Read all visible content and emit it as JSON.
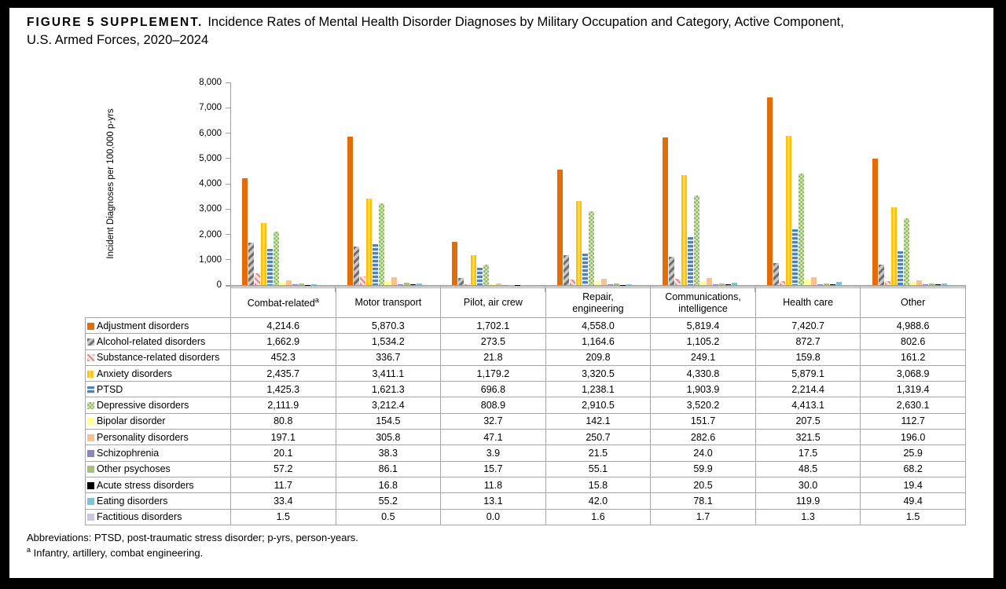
{
  "figure": {
    "label": "FIGURE 5 SUPPLEMENT.",
    "title_part1": "Incidence Rates of Mental Health Disorder Diagnoses by Military Occupation and Category, Active Component,",
    "title_part2": "U.S. Armed Forces, 2020–2024"
  },
  "footnotes": {
    "abbreviations": "Abbreviations: PTSD, post-traumatic stress disorder; p-yrs, person-years.",
    "a_marker": "a",
    "a_text": " Infantry, artillery, combat engineering."
  },
  "chart_data": {
    "type": "bar",
    "title": "Incidence Rates of Mental Health Disorder Diagnoses by Military Occupation and Category, Active Component, U.S. Armed Forces, 2020–2024",
    "xlabel": "",
    "ylabel": "Incident Diagnoses per 100,000 p-yrs",
    "ylim": [
      0,
      8000
    ],
    "ytick_interval": 1000,
    "grid": false,
    "legend_position": "table-first-column",
    "axis_color": "#a6a6a6",
    "categories": [
      {
        "lines": [
          "Combat-related"
        ],
        "sup": "a"
      },
      {
        "lines": [
          "Motor transport"
        ]
      },
      {
        "lines": [
          "Pilot, air crew"
        ]
      },
      {
        "lines": [
          "Repair,",
          "engineering"
        ]
      },
      {
        "lines": [
          "Communications,",
          "intelligence"
        ]
      },
      {
        "lines": [
          "Health care"
        ]
      },
      {
        "lines": [
          "Other"
        ]
      }
    ],
    "series": [
      {
        "name": "Adjustment disorders",
        "pattern": "solid",
        "color": "#e36c09",
        "values": [
          4214.6,
          5870.3,
          1702.1,
          4558.0,
          5819.4,
          7420.7,
          4988.6
        ]
      },
      {
        "name": "Alcohol-related disorders",
        "pattern": "diagonal-down",
        "color": "#6f6f6f",
        "color2": "#c8c8c8",
        "values": [
          1662.9,
          1534.2,
          273.5,
          1164.6,
          1105.2,
          872.7,
          802.6
        ]
      },
      {
        "name": "Substance-related disorders",
        "pattern": "diagonal-up",
        "color": "#e08a8a",
        "color2": "#f6e0e0",
        "values": [
          452.3,
          336.7,
          21.8,
          209.8,
          249.1,
          159.8,
          161.2
        ]
      },
      {
        "name": "Anxiety disorders",
        "pattern": "vertical",
        "color": "#ffc000",
        "color2": "#ffde6b",
        "values": [
          2435.7,
          3411.1,
          1179.2,
          3320.5,
          4330.8,
          5879.1,
          3068.9
        ]
      },
      {
        "name": "PTSD",
        "pattern": "horizontal",
        "color": "#4f81bd",
        "color2": "#d9e2f0",
        "values": [
          1425.3,
          1621.3,
          696.8,
          1238.1,
          1903.9,
          2214.4,
          1319.4
        ]
      },
      {
        "name": "Depressive disorders",
        "pattern": "check",
        "color": "#8fb861",
        "color2": "#d9e8c4",
        "values": [
          2111.9,
          3212.4,
          808.9,
          2910.5,
          3520.2,
          4413.1,
          2630.1
        ]
      },
      {
        "name": "Bipolar disorder",
        "pattern": "solid",
        "color": "#ffff99",
        "values": [
          80.8,
          154.5,
          32.7,
          142.1,
          151.7,
          207.5,
          112.7
        ]
      },
      {
        "name": "Personality disorders",
        "pattern": "solid",
        "color": "#fac090",
        "values": [
          197.1,
          305.8,
          47.1,
          250.7,
          282.6,
          321.5,
          196.0
        ]
      },
      {
        "name": "Schizophrenia",
        "pattern": "solid",
        "color": "#9183bd",
        "values": [
          20.1,
          38.3,
          3.9,
          21.5,
          24.0,
          17.5,
          25.9
        ]
      },
      {
        "name": "Other psychoses",
        "pattern": "solid",
        "color": "#a8c07c",
        "values": [
          57.2,
          86.1,
          15.7,
          55.1,
          59.9,
          48.5,
          68.2
        ]
      },
      {
        "name": "Acute stress disorders",
        "pattern": "solid",
        "color": "#000000",
        "values": [
          11.7,
          16.8,
          11.8,
          15.8,
          20.5,
          30.0,
          19.4
        ]
      },
      {
        "name": "Eating disorders",
        "pattern": "solid",
        "color": "#7ec3d7",
        "values": [
          33.4,
          55.2,
          13.1,
          42.0,
          78.1,
          119.9,
          49.4
        ]
      },
      {
        "name": "Factitious disorders",
        "pattern": "solid",
        "color": "#ccc5de",
        "values": [
          1.5,
          0.5,
          0.0,
          1.6,
          1.7,
          1.3,
          1.5
        ]
      }
    ]
  }
}
